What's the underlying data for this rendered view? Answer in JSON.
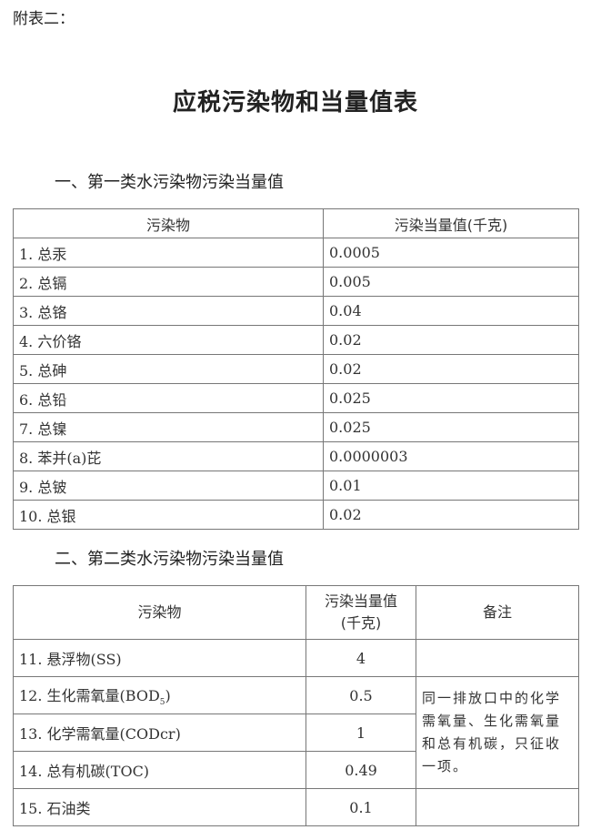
{
  "annex_label": "附表二：",
  "title": "应税污染物和当量值表",
  "section1": {
    "heading": "一、第一类水污染物污染当量值",
    "headers": [
      "污染物",
      "污染当量值(千克)"
    ],
    "rows": [
      {
        "name": "1. 总汞",
        "value": "0.0005"
      },
      {
        "name": "2. 总镉",
        "value": "0.005"
      },
      {
        "name": "3. 总铬",
        "value": "0.04"
      },
      {
        "name": "4. 六价铬",
        "value": "0.02"
      },
      {
        "name": "5. 总砷",
        "value": "0.02"
      },
      {
        "name": "6. 总铅",
        "value": "0.025"
      },
      {
        "name": "7. 总镍",
        "value": "0.025"
      },
      {
        "name": "8. 苯并(a)芘",
        "value": "0.0000003"
      },
      {
        "name": "9. 总铍",
        "value": "0.01"
      },
      {
        "name": "10. 总银",
        "value": "0.02"
      }
    ]
  },
  "section2": {
    "heading": "二、第二类水污染物污染当量值",
    "headers": [
      "污染物",
      "污染当量值",
      "(千克)",
      "备注"
    ],
    "rows": [
      {
        "name": "11. 悬浮物(SS)",
        "value": "4"
      },
      {
        "name": "12. 生化需氧量(BOD",
        "sub": "5",
        "suffix": ")",
        "value": "0.5"
      },
      {
        "name": "13. 化学需氧量(CODcr)",
        "value": "1"
      },
      {
        "name": "14. 总有机碳(TOC)",
        "value": "0.49"
      },
      {
        "name": "15. 石油类",
        "value": "0.1"
      }
    ],
    "note": "同一排放口中的化学需氧量、生化需氧量和总有机碳，只征收一项。"
  }
}
